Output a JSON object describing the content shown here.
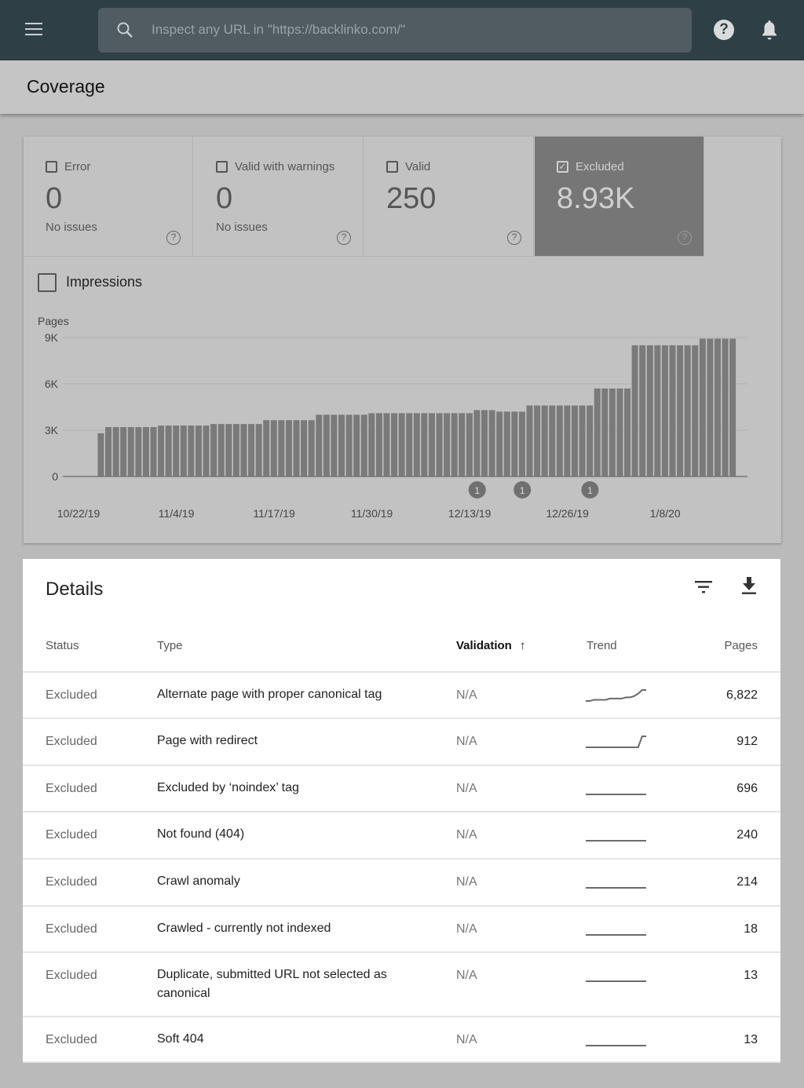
{
  "topbar": {
    "search_placeholder": "Inspect any URL in \"https://backlinko.com/\"",
    "help_icon": "?"
  },
  "header": {
    "title": "Coverage"
  },
  "tiles": [
    {
      "label": "Error",
      "value": "0",
      "sub": "No issues",
      "checked": false
    },
    {
      "label": "Valid with warnings",
      "value": "0",
      "sub": "No issues",
      "checked": false
    },
    {
      "label": "Valid",
      "value": "250",
      "sub": "",
      "checked": false
    },
    {
      "label": "Excluded",
      "value": "8.93K",
      "sub": "",
      "checked": true
    }
  ],
  "impressions_label": "Impressions",
  "colors": {
    "topbar": "#2f3f46",
    "bar": "#7a7a7a",
    "selected_tile": "#767676"
  },
  "chart_data": {
    "type": "bar",
    "ylabel": "Pages",
    "ylim": [
      0,
      9000
    ],
    "yticks": [
      {
        "v": 0,
        "label": "0"
      },
      {
        "v": 3000,
        "label": "3K"
      },
      {
        "v": 6000,
        "label": "6K"
      },
      {
        "v": 9000,
        "label": "9K"
      }
    ],
    "x_start_date": "10/22/19",
    "xticks": [
      {
        "day": 0,
        "label": "10/22/19"
      },
      {
        "day": 13,
        "label": "11/4/19"
      },
      {
        "day": 26,
        "label": "11/17/19"
      },
      {
        "day": 39,
        "label": "11/30/19"
      },
      {
        "day": 52,
        "label": "12/13/19"
      },
      {
        "day": 65,
        "label": "12/26/19"
      },
      {
        "day": 78,
        "label": "1/8/20"
      }
    ],
    "first_bar_day": 3,
    "values": [
      2800,
      3200,
      3200,
      3200,
      3200,
      3200,
      3200,
      3200,
      3300,
      3300,
      3300,
      3300,
      3300,
      3300,
      3300,
      3400,
      3400,
      3400,
      3400,
      3400,
      3400,
      3400,
      3650,
      3650,
      3650,
      3650,
      3650,
      3650,
      3650,
      4000,
      4000,
      4000,
      4000,
      4000,
      4000,
      4000,
      4100,
      4100,
      4100,
      4100,
      4100,
      4100,
      4100,
      4100,
      4100,
      4100,
      4100,
      4100,
      4100,
      4100,
      4300,
      4300,
      4300,
      4200,
      4200,
      4200,
      4200,
      4600,
      4600,
      4600,
      4600,
      4600,
      4600,
      4600,
      4600,
      4600,
      5700,
      5700,
      5700,
      5700,
      5700,
      8500,
      8500,
      8500,
      8500,
      8500,
      8500,
      8500,
      8500,
      8500,
      8930,
      8930,
      8930,
      8930,
      8930
    ],
    "annotations": [
      {
        "day": 53,
        "label": "1"
      },
      {
        "day": 59,
        "label": "1"
      },
      {
        "day": 68,
        "label": "1"
      }
    ]
  },
  "details": {
    "title": "Details",
    "columns": {
      "status": "Status",
      "type": "Type",
      "validation": "Validation",
      "trend": "Trend",
      "pages": "Pages"
    },
    "rows": [
      {
        "status": "Excluded",
        "type": "Alternate page with proper canonical tag",
        "validation": "N/A",
        "pages": "6,822",
        "trend": [
          1,
          1,
          2,
          2,
          2,
          2,
          3,
          3,
          3,
          3,
          4,
          4,
          5,
          7,
          10,
          10
        ]
      },
      {
        "status": "Excluded",
        "type": "Page with redirect",
        "validation": "N/A",
        "pages": "912",
        "trend": [
          1,
          1,
          1,
          1,
          1,
          1,
          1,
          1,
          1,
          1,
          1,
          1,
          1,
          1,
          2,
          2
        ]
      },
      {
        "status": "Excluded",
        "type": "Excluded by ‘noindex’ tag",
        "validation": "N/A",
        "pages": "696",
        "trend": [
          1,
          1,
          1,
          1,
          1,
          1,
          1,
          1,
          1,
          1,
          1,
          1,
          1,
          1,
          1,
          1
        ]
      },
      {
        "status": "Excluded",
        "type": "Not found (404)",
        "validation": "N/A",
        "pages": "240",
        "trend": [
          1,
          1,
          1,
          1,
          1,
          1,
          1,
          1,
          1,
          1,
          1,
          1,
          1,
          1,
          1,
          1
        ]
      },
      {
        "status": "Excluded",
        "type": "Crawl anomaly",
        "validation": "N/A",
        "pages": "214",
        "trend": [
          1,
          1,
          1,
          1,
          1,
          1,
          1,
          1,
          1,
          1,
          1,
          1,
          1,
          1,
          1,
          1
        ]
      },
      {
        "status": "Excluded",
        "type": "Crawled - currently not indexed",
        "validation": "N/A",
        "pages": "18",
        "trend": [
          1,
          1,
          1,
          1,
          1,
          1,
          1,
          1,
          1,
          1,
          1,
          1,
          1,
          1,
          1,
          1
        ]
      },
      {
        "status": "Excluded",
        "type": "Duplicate, submitted URL not selected as canonical",
        "validation": "N/A",
        "pages": "13",
        "trend": [
          1,
          1,
          1,
          1,
          1,
          1,
          1,
          1,
          1,
          1,
          1,
          1,
          1,
          1,
          1,
          1
        ]
      },
      {
        "status": "Excluded",
        "type": "Soft 404",
        "validation": "N/A",
        "pages": "13",
        "trend": [
          1,
          1,
          1,
          1,
          1,
          1,
          1,
          1,
          1,
          1,
          1,
          1,
          1,
          1,
          1,
          1
        ]
      }
    ]
  }
}
